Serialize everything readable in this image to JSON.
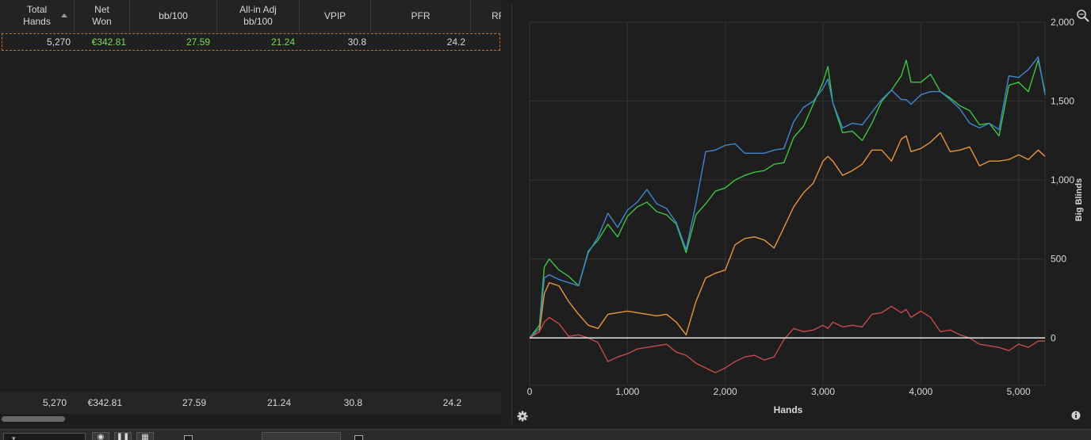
{
  "table": {
    "columns": [
      {
        "label": "Total\nHands",
        "sorted": true
      },
      {
        "label": "Net\nWon"
      },
      {
        "label": "bb/100"
      },
      {
        "label": "All-in Adj\nbb/100"
      },
      {
        "label": "VPIP"
      },
      {
        "label": "PFR"
      },
      {
        "label": "RF"
      }
    ],
    "row": {
      "total_hands": "5,270",
      "net_won": "€342.81",
      "bb100": "27.59",
      "allin_adj": "21.24",
      "vpip": "30.8",
      "pfr": "24.2"
    },
    "totals": {
      "total_hands": "5,270",
      "net_won": "€342.81",
      "bb100": "27.59",
      "allin_adj": "21.24",
      "vpip": "30.8",
      "pfr": "24.2"
    }
  },
  "colors": {
    "positive": "#7ed957",
    "series_green": "#3ec43e",
    "series_blue": "#3f86d1",
    "series_orange": "#e8953a",
    "series_red": "#c44a4a",
    "zero_line": "#e6e6e6"
  },
  "icons": [
    "zoom-icon",
    "settings-gear-icon",
    "info-icon",
    "sort-ascending-icon",
    "eye-icon",
    "pause-icon",
    "grid-icon"
  ],
  "chart_data": {
    "type": "line",
    "xlabel": "Hands",
    "ylabel": "Big Blinds",
    "xlim": [
      0,
      5270
    ],
    "ylim": [
      -300,
      2000
    ],
    "x_ticks": [
      "0",
      "1,000",
      "2,000",
      "3,000",
      "4,000",
      "5,000"
    ],
    "x_tick_values": [
      0,
      1000,
      2000,
      3000,
      4000,
      5000
    ],
    "y_ticks": [
      "2,000",
      "1,500",
      "1,000",
      "500",
      "0"
    ],
    "y_tick_values": [
      2000,
      1500,
      1000,
      500,
      0
    ],
    "grid": true,
    "series": [
      {
        "color": "#3ec43e",
        "x": [
          0,
          100,
          150,
          200,
          300,
          400,
          500,
          600,
          700,
          800,
          900,
          1000,
          1100,
          1200,
          1300,
          1400,
          1500,
          1600,
          1700,
          1800,
          1900,
          2000,
          2100,
          2200,
          2300,
          2400,
          2500,
          2600,
          2700,
          2800,
          2900,
          3000,
          3050,
          3100,
          3200,
          3300,
          3400,
          3500,
          3600,
          3700,
          3800,
          3850,
          3900,
          4000,
          4100,
          4200,
          4300,
          4400,
          4500,
          4600,
          4700,
          4800,
          4900,
          5000,
          5100,
          5200,
          5270
        ],
        "y": [
          0,
          80,
          450,
          500,
          430,
          390,
          330,
          550,
          620,
          720,
          640,
          770,
          830,
          860,
          800,
          780,
          720,
          540,
          780,
          850,
          930,
          950,
          1000,
          1030,
          1050,
          1060,
          1100,
          1110,
          1270,
          1340,
          1480,
          1620,
          1720,
          1490,
          1300,
          1310,
          1250,
          1360,
          1500,
          1570,
          1660,
          1760,
          1620,
          1620,
          1670,
          1560,
          1520,
          1470,
          1440,
          1350,
          1360,
          1280,
          1600,
          1620,
          1560,
          1760,
          1560
        ]
      },
      {
        "color": "#3f86d1",
        "x": [
          0,
          100,
          150,
          200,
          300,
          400,
          500,
          600,
          700,
          800,
          900,
          1000,
          1100,
          1200,
          1300,
          1400,
          1500,
          1600,
          1700,
          1800,
          1900,
          2000,
          2100,
          2200,
          2300,
          2400,
          2500,
          2600,
          2700,
          2800,
          2900,
          3000,
          3050,
          3100,
          3200,
          3300,
          3400,
          3500,
          3600,
          3700,
          3800,
          3850,
          3900,
          4000,
          4100,
          4200,
          4300,
          4400,
          4500,
          4600,
          4700,
          4800,
          4900,
          5000,
          5100,
          5200,
          5270
        ],
        "y": [
          0,
          60,
          380,
          400,
          370,
          350,
          330,
          540,
          640,
          790,
          700,
          810,
          860,
          940,
          850,
          820,
          730,
          560,
          850,
          1180,
          1190,
          1220,
          1230,
          1170,
          1170,
          1170,
          1190,
          1200,
          1370,
          1460,
          1500,
          1580,
          1640,
          1490,
          1330,
          1360,
          1350,
          1430,
          1510,
          1570,
          1510,
          1510,
          1480,
          1540,
          1560,
          1560,
          1510,
          1450,
          1360,
          1330,
          1360,
          1320,
          1660,
          1650,
          1700,
          1780,
          1540
        ]
      },
      {
        "color": "#e8953a",
        "x": [
          0,
          100,
          150,
          200,
          300,
          400,
          500,
          600,
          700,
          800,
          900,
          1000,
          1100,
          1200,
          1300,
          1400,
          1500,
          1600,
          1700,
          1800,
          1900,
          2000,
          2100,
          2200,
          2300,
          2400,
          2500,
          2600,
          2700,
          2800,
          2900,
          3000,
          3050,
          3100,
          3200,
          3300,
          3400,
          3500,
          3600,
          3700,
          3800,
          3850,
          3900,
          4000,
          4100,
          4200,
          4300,
          4400,
          4500,
          4600,
          4700,
          4800,
          4900,
          5000,
          5100,
          5200,
          5270
        ],
        "y": [
          0,
          40,
          280,
          350,
          330,
          230,
          150,
          80,
          60,
          150,
          160,
          170,
          160,
          150,
          140,
          150,
          100,
          20,
          230,
          380,
          410,
          430,
          590,
          630,
          640,
          620,
          570,
          700,
          830,
          920,
          980,
          1120,
          1150,
          1120,
          1030,
          1060,
          1100,
          1190,
          1190,
          1120,
          1260,
          1280,
          1180,
          1200,
          1240,
          1300,
          1180,
          1190,
          1210,
          1090,
          1120,
          1120,
          1130,
          1160,
          1130,
          1190,
          1150
        ]
      },
      {
        "color": "#c44a4a",
        "x": [
          0,
          100,
          150,
          200,
          300,
          400,
          500,
          600,
          700,
          800,
          900,
          1000,
          1100,
          1200,
          1300,
          1400,
          1500,
          1600,
          1700,
          1800,
          1900,
          2000,
          2100,
          2200,
          2300,
          2400,
          2500,
          2600,
          2700,
          2800,
          2900,
          3000,
          3050,
          3100,
          3200,
          3300,
          3400,
          3500,
          3600,
          3700,
          3800,
          3850,
          3900,
          4000,
          4100,
          4200,
          4300,
          4400,
          4500,
          4600,
          4700,
          4800,
          4900,
          5000,
          5100,
          5200,
          5270
        ],
        "y": [
          0,
          40,
          100,
          130,
          90,
          10,
          20,
          0,
          -30,
          -150,
          -120,
          -100,
          -70,
          -60,
          -50,
          -40,
          -90,
          -110,
          -160,
          -190,
          -220,
          -190,
          -150,
          -120,
          -110,
          -140,
          -120,
          -10,
          60,
          40,
          50,
          80,
          60,
          100,
          70,
          80,
          70,
          150,
          160,
          200,
          160,
          180,
          130,
          170,
          130,
          40,
          50,
          20,
          0,
          -40,
          -50,
          -60,
          -80,
          -40,
          -60,
          -20,
          -20
        ]
      }
    ],
    "hline": 0
  }
}
